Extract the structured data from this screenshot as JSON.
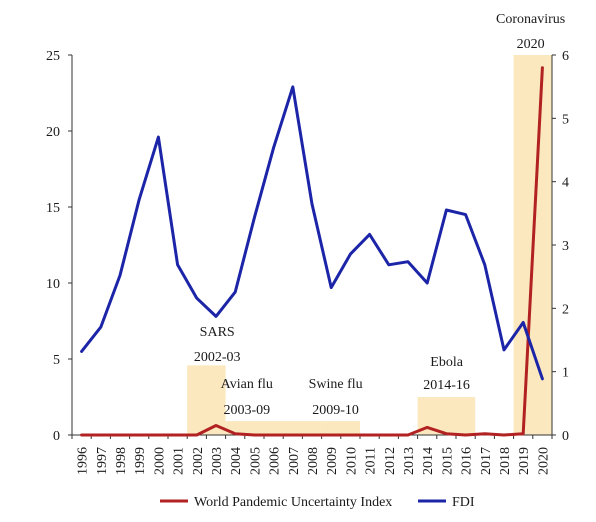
{
  "chart_data": {
    "type": "line",
    "categories": [
      "1996",
      "1997",
      "1998",
      "1999",
      "2000",
      "2001",
      "2002",
      "2003",
      "2004",
      "2005",
      "2006",
      "2007",
      "2008",
      "2009",
      "2010",
      "2011",
      "2012",
      "2013",
      "2014",
      "2015",
      "2016",
      "2017",
      "2018",
      "2019",
      "2020"
    ],
    "left_axis": {
      "ylim": [
        0,
        25
      ],
      "ticks": [
        "0",
        "5",
        "10",
        "15",
        "20",
        "25"
      ]
    },
    "right_axis": {
      "ylim": [
        0,
        6
      ],
      "ticks": [
        "0",
        "1",
        "2",
        "3",
        "4",
        "5",
        "6"
      ]
    },
    "series": [
      {
        "name": "World Pandemic Uncertainty Index",
        "axis": "right",
        "color": "#b22222",
        "values": [
          0,
          0,
          0,
          0,
          0,
          0,
          0,
          0.15,
          0.02,
          0,
          0,
          0,
          0,
          0,
          0,
          0,
          0,
          0,
          0.12,
          0.02,
          0,
          0.02,
          0,
          0.02,
          5.8
        ]
      },
      {
        "name": "FDI",
        "axis": "left",
        "color": "#1c24a8",
        "values": [
          5.5,
          7.1,
          10.5,
          15.5,
          19.6,
          11.2,
          9.0,
          7.8,
          9.4,
          14.3,
          18.9,
          22.9,
          15.2,
          9.7,
          11.9,
          13.2,
          11.2,
          11.4,
          10.0,
          14.8,
          14.5,
          11.2,
          5.6,
          7.4,
          3.7
        ]
      }
    ],
    "annotations": [
      {
        "label": "SARS",
        "sub": "2002-03",
        "from": "2002",
        "to": "2004",
        "height": 1.1,
        "shaded": true
      },
      {
        "label": "Avian flu",
        "sub": "2003-09",
        "from": "2004",
        "to": "2009",
        "height": 0.22,
        "shaded": true
      },
      {
        "label": "Swine flu",
        "sub": "2009-10",
        "from": "2009",
        "to": "2011",
        "height": 0.22,
        "shaded": true
      },
      {
        "label": "Ebola",
        "sub": "2014-16",
        "from": "2014",
        "to": "2017",
        "height": 0.6,
        "shaded": true
      },
      {
        "label": "Coronavirus",
        "sub": "2020",
        "from": "2019",
        "to": "2021",
        "height": 6,
        "shaded": true
      }
    ],
    "shade_color": "#fbe8bf",
    "legend": {
      "placement": "bottom",
      "items": [
        "World Pandemic Uncertainty Index",
        "FDI"
      ]
    },
    "grid": false
  }
}
